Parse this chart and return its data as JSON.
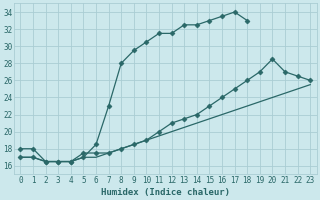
{
  "title": "",
  "xlabel": "Humidex (Indice chaleur)",
  "ylabel": "",
  "bg_color": "#cce8ec",
  "grid_color": "#aacdd4",
  "line_color": "#2a6868",
  "xlim": [
    -0.5,
    23.5
  ],
  "ylim": [
    15.0,
    35.0
  ],
  "xticks": [
    0,
    1,
    2,
    3,
    4,
    5,
    6,
    7,
    8,
    9,
    10,
    11,
    12,
    13,
    14,
    15,
    16,
    17,
    18,
    19,
    20,
    21,
    22,
    23
  ],
  "yticks": [
    16,
    18,
    20,
    22,
    24,
    26,
    28,
    30,
    32,
    34
  ],
  "curve1_x": [
    0,
    1,
    2,
    3,
    4,
    5,
    6,
    7,
    8,
    9,
    10,
    11,
    12,
    13,
    14,
    15,
    16,
    17,
    18
  ],
  "curve1_y": [
    18,
    18,
    16.5,
    16.5,
    16.5,
    17.0,
    18.5,
    23.0,
    28.0,
    29.5,
    30.5,
    31.5,
    31.5,
    32.5,
    32.5,
    33.0,
    33.5,
    34.0,
    33.0
  ],
  "curve2_x": [
    0,
    1,
    2,
    3,
    4,
    5,
    6,
    7,
    8,
    9,
    10,
    11,
    12,
    13,
    14,
    15,
    16,
    17,
    18,
    19,
    20,
    21,
    22,
    23
  ],
  "curve2_y": [
    17.0,
    17.0,
    16.5,
    16.5,
    16.5,
    17.5,
    17.5,
    17.5,
    18.0,
    18.5,
    19.0,
    20.0,
    21.0,
    21.5,
    22.0,
    23.0,
    24.0,
    25.0,
    26.0,
    27.0,
    28.5,
    27.0,
    26.5,
    26.0
  ],
  "curve3_x": [
    0,
    1,
    2,
    3,
    4,
    5,
    6,
    7,
    8,
    9,
    10,
    11,
    12,
    13,
    14,
    15,
    16,
    17,
    18,
    19,
    20,
    21,
    22,
    23
  ],
  "curve3_y": [
    17.0,
    17.0,
    16.5,
    16.5,
    16.5,
    17.0,
    17.0,
    17.5,
    18.0,
    18.5,
    19.0,
    19.5,
    20.0,
    20.5,
    21.0,
    21.5,
    22.0,
    22.5,
    23.0,
    23.5,
    24.0,
    24.5,
    25.0,
    25.5
  ],
  "marker": "D",
  "marker_size": 2.5,
  "linewidth": 0.9
}
